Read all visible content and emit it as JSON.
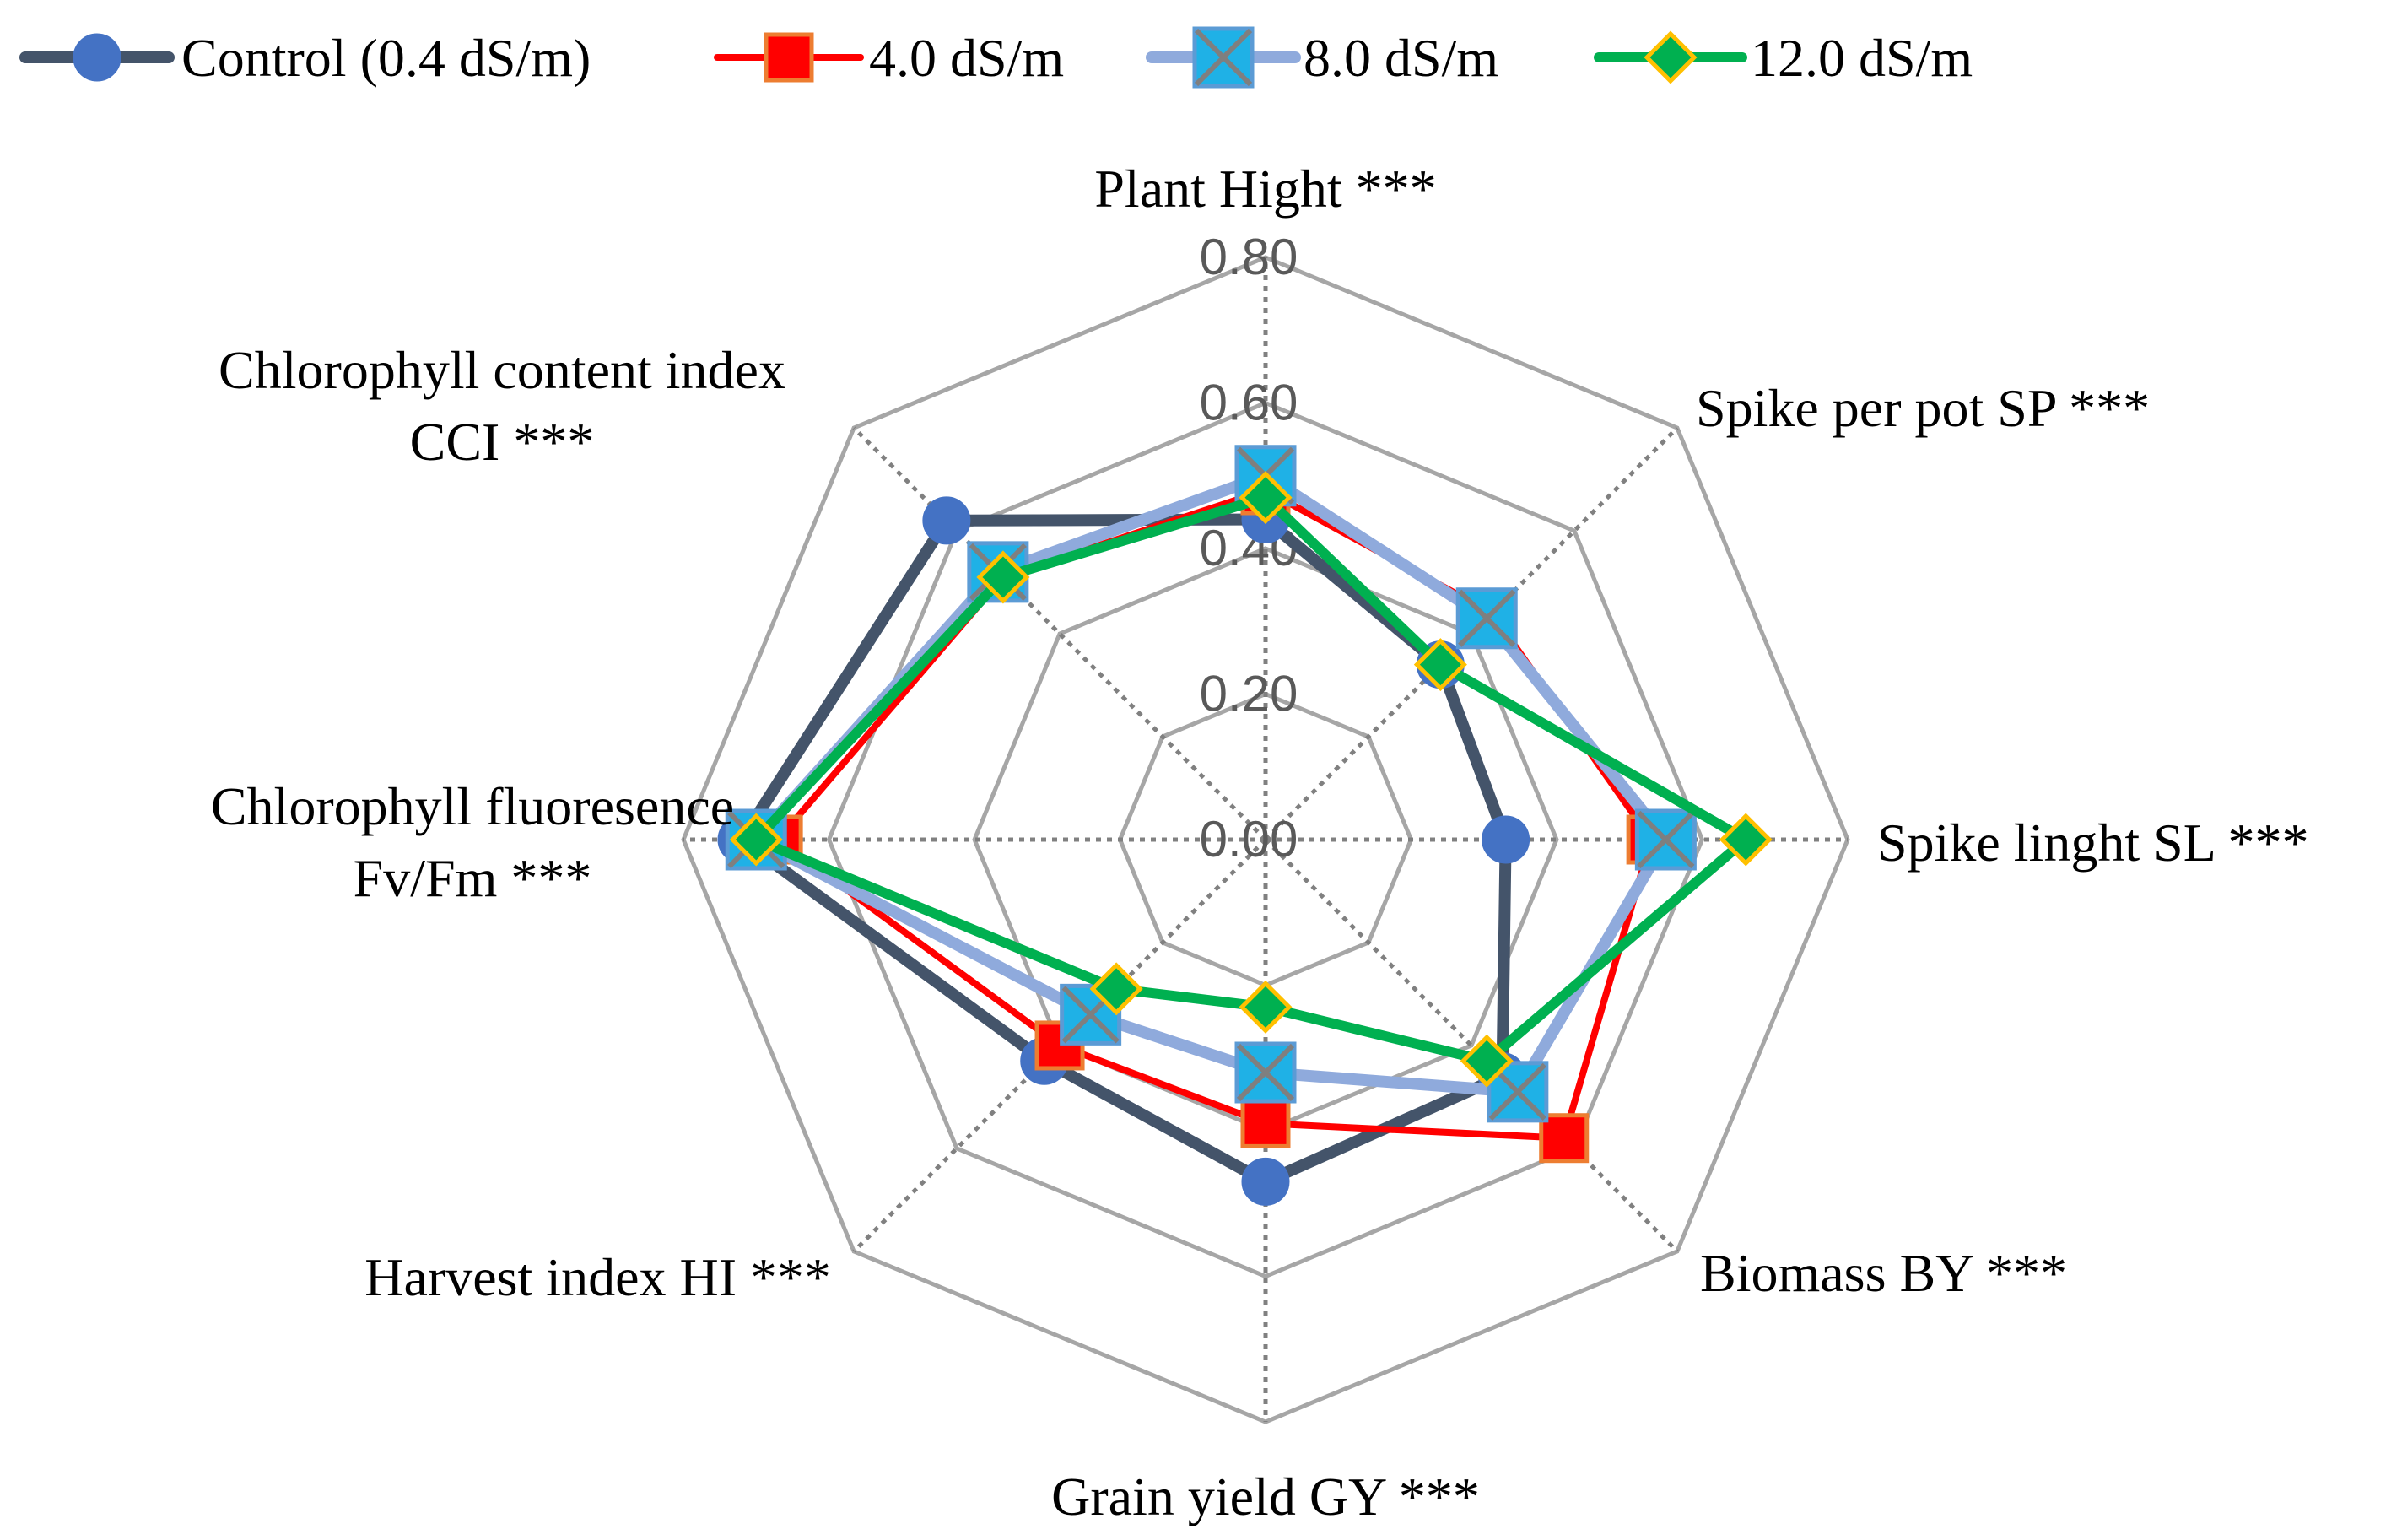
{
  "chart_data": {
    "type": "radar",
    "axes": [
      "Plant Hight ***",
      "Spike per pot SP ***",
      "Spike linght SL ***",
      "Biomass BY ***",
      "Grain yield GY ***",
      "Harvest index HI ***",
      "Chlorophyll fluoresence Fv/Fm ***",
      "Chlorophyll content index CCI ***"
    ],
    "axis_label_lines": [
      [
        "Plant Hight ***"
      ],
      [
        "Spike per pot SP ***"
      ],
      [
        "Spike linght SL ***"
      ],
      [
        "Biomass BY ***"
      ],
      [
        "Grain yield GY ***"
      ],
      [
        "Harvest index HI ***"
      ],
      [
        "Chlorophyll fluoresence",
        "Fv/Fm ***"
      ],
      [
        "Chlorophyll content index",
        "CCI ***"
      ]
    ],
    "r_range": [
      0,
      0.8
    ],
    "ticks": [
      "0.00",
      "0.20",
      "0.40",
      "0.60",
      "0.80"
    ],
    "tick_values": [
      0,
      0.2,
      0.4,
      0.6,
      0.8
    ],
    "series": [
      {
        "name": "Control (0.4 dS/m)",
        "color": "#44546A",
        "marker": "circle",
        "marker_fill": "#4472C4",
        "marker_stroke": "#4472C4",
        "values": [
          0.44,
          0.34,
          0.33,
          0.46,
          0.47,
          0.43,
          0.72,
          0.62
        ]
      },
      {
        "name": "4.0 dS/m",
        "color": "#FF0000",
        "marker": "square",
        "marker_fill": "#FF0000",
        "marker_stroke": "#ED7D31",
        "values": [
          0.48,
          0.44,
          0.53,
          0.58,
          0.39,
          0.4,
          0.67,
          0.51
        ]
      },
      {
        "name": "8.0 dS/m",
        "color": "#8FAADC",
        "marker": "square-x",
        "marker_fill": "#1FB1E6",
        "marker_stroke": "#5B9BD5",
        "values": [
          0.5,
          0.43,
          0.55,
          0.49,
          0.32,
          0.34,
          0.7,
          0.52
        ]
      },
      {
        "name": "12.0 dS/m",
        "color": "#00B050",
        "marker": "diamond",
        "marker_fill": "#00B050",
        "marker_stroke": "#FFC000",
        "values": [
          0.47,
          0.34,
          0.66,
          0.43,
          0.23,
          0.29,
          0.7,
          0.51
        ]
      }
    ],
    "legend_position": "top",
    "grid": true
  }
}
